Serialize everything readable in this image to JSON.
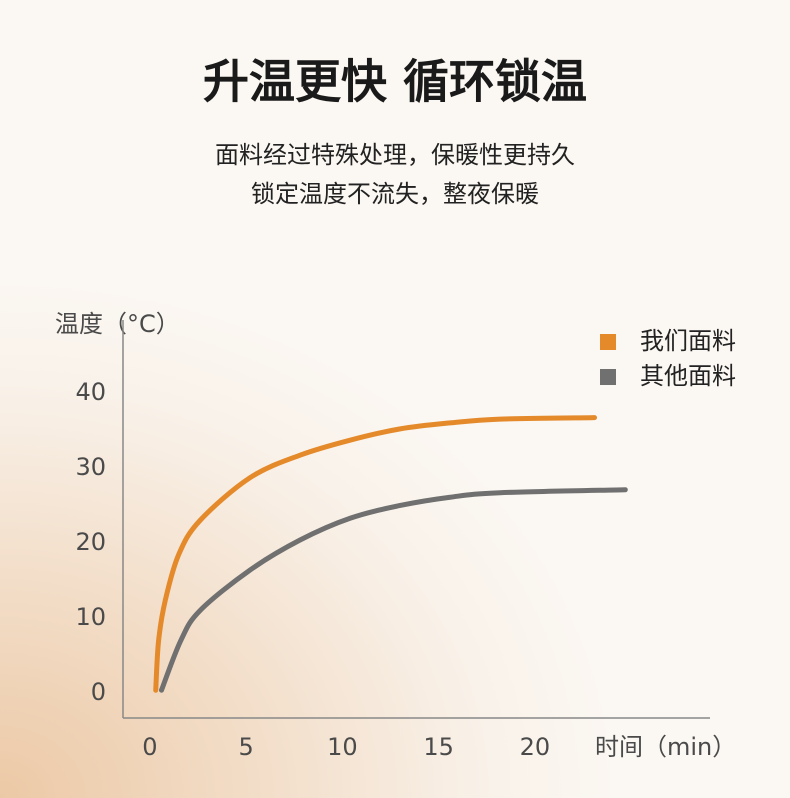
{
  "chart_data": {
    "type": "line",
    "title": "升温更快 循环锁温",
    "subtitle": [
      "面料经过特殊处理，保暖性更持久",
      "锁定温度不流失，整夜保暖"
    ],
    "y_label": "温度（°C）",
    "x_label": "时间（min）",
    "xlim": [
      -1.4,
      29.1
    ],
    "ylim": [
      -3.3,
      49.7
    ],
    "xticks": [
      0,
      5,
      10,
      15,
      20
    ],
    "yticks": [
      0,
      10,
      20,
      30,
      40
    ],
    "grid": false,
    "legend": "top-right",
    "series": [
      {
        "name": "我们面料",
        "color": "#e48a2b",
        "x": [
          0.3,
          0.45,
          0.8,
          1.5,
          2.6,
          5.2,
          7.8,
          10.4,
          13,
          15.6,
          18.2,
          23.1
        ],
        "values": [
          0.4,
          7,
          12.4,
          18.5,
          23,
          28.7,
          31.7,
          33.7,
          35.2,
          36,
          36.5,
          36.7
        ]
      },
      {
        "name": "其他面料",
        "color": "#707070",
        "x": [
          0.6,
          1.6,
          2.6,
          5.2,
          7.8,
          10.4,
          13,
          15.6,
          18.2,
          24.7
        ],
        "values": [
          0.4,
          7,
          11,
          16.4,
          20.4,
          23.3,
          25,
          26.1,
          26.7,
          27.1
        ]
      }
    ]
  }
}
